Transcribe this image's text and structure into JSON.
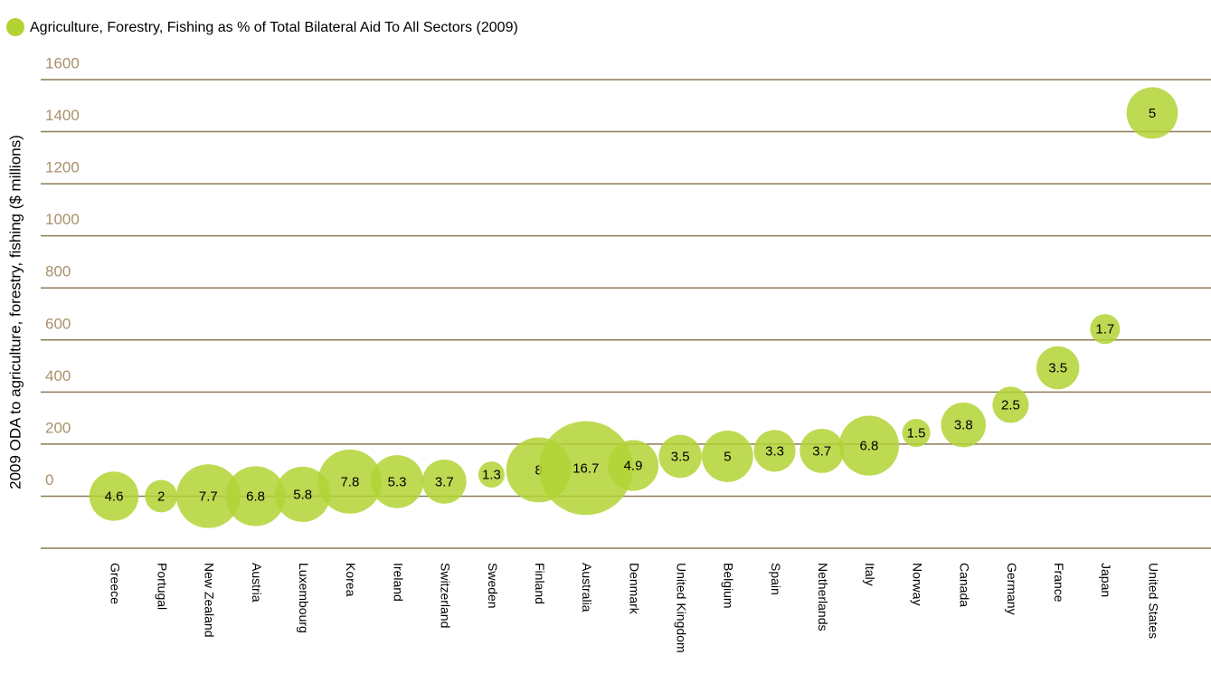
{
  "chart_data": {
    "type": "bubble",
    "title": "Agriculture, Forestry, Fishing as % of Total Bilateral Aid To All Sectors (2009)",
    "y_label": "2009 ODA to agriculture, forestry, fishing ($ millions)",
    "categories": [
      "Greece",
      "Portugal",
      "New Zealand",
      "Austria",
      "Luxembourg",
      "Korea",
      "Ireland",
      "Switzerland",
      "Sweden",
      "Finland",
      "Australia",
      "Denmark",
      "United Kingdom",
      "Belgium",
      "Spain",
      "Netherlands",
      "Italy",
      "Norway",
      "Canada",
      "Germany",
      "France",
      "Japan",
      "United States"
    ],
    "values": [
      0,
      0,
      0,
      0,
      7,
      56,
      56,
      56,
      83,
      101,
      108,
      118,
      153,
      153,
      174,
      174,
      194,
      243,
      274,
      351,
      493,
      642,
      1472
    ],
    "sizes": [
      4.6,
      2,
      7.7,
      6.8,
      5.8,
      7.8,
      5.3,
      3.7,
      1.3,
      8,
      16.7,
      4.9,
      3.5,
      5,
      3.3,
      3.7,
      6.8,
      1.5,
      3.8,
      2.5,
      3.5,
      1.7,
      5
    ],
    "color": "#b3d335",
    "ylim": [
      -200,
      1600
    ],
    "yticks": [
      0,
      200,
      400,
      600,
      800,
      1000,
      1200,
      1400,
      1600
    ],
    "grid": true
  }
}
